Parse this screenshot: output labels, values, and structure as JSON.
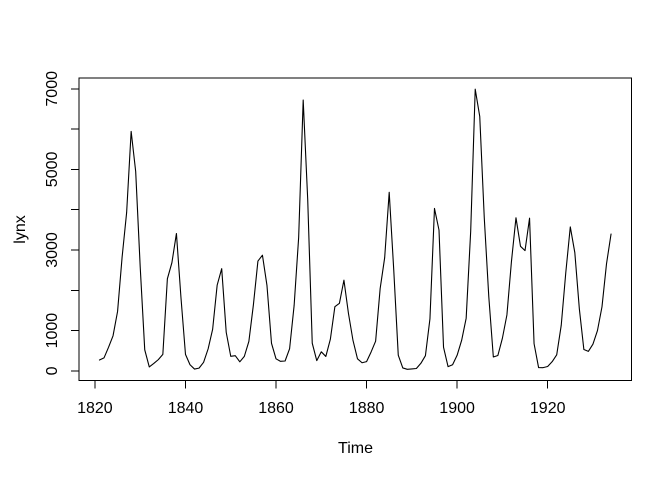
{
  "chart_data": {
    "type": "line",
    "title": "",
    "xlabel": "Time",
    "ylabel": "lynx",
    "x_start": 1821,
    "x_end": 1934,
    "values": [
      269,
      321,
      585,
      871,
      1475,
      2821,
      3928,
      5943,
      4950,
      2577,
      523,
      98,
      184,
      279,
      409,
      2285,
      2685,
      3409,
      1824,
      409,
      151,
      45,
      68,
      213,
      546,
      1033,
      2129,
      2536,
      957,
      361,
      377,
      225,
      360,
      731,
      1638,
      2725,
      2871,
      2119,
      684,
      299,
      236,
      245,
      552,
      1623,
      3311,
      6721,
      4254,
      687,
      255,
      473,
      358,
      784,
      1594,
      1676,
      2251,
      1426,
      756,
      299,
      201,
      229,
      469,
      736,
      2042,
      2811,
      4431,
      2511,
      389,
      73,
      39,
      49,
      59,
      188,
      377,
      1292,
      4031,
      3495,
      587,
      105,
      153,
      387,
      758,
      1307,
      3465,
      6991,
      6313,
      3794,
      1836,
      345,
      382,
      808,
      1388,
      2713,
      3800,
      3091,
      2985,
      3790,
      674,
      81,
      80,
      108,
      229,
      399,
      1132,
      2432,
      3574,
      2935,
      1537,
      529,
      485,
      662,
      1000,
      1590,
      2657,
      3396
    ],
    "xlim": [
      1816.48,
      1938.52
    ],
    "ylim": [
      -239.08,
      7269.08
    ],
    "x_ticks": [
      1820,
      1840,
      1860,
      1880,
      1900,
      1920
    ],
    "y_ticks": [
      0,
      1000,
      2000,
      3000,
      4000,
      5000,
      6000,
      7000
    ],
    "y_tick_labels": [
      "0",
      "1000",
      "",
      "3000",
      "",
      "5000",
      "",
      "7000"
    ],
    "line_color": "#000000",
    "background": "#ffffff",
    "grid": false,
    "legend": null
  }
}
